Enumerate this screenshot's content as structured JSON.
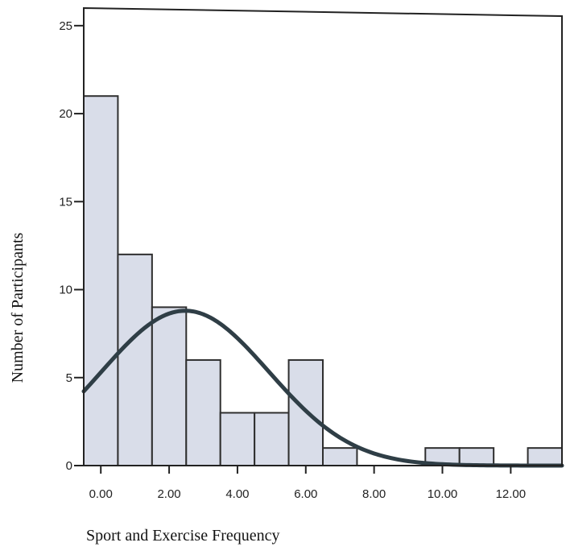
{
  "chart_data": {
    "type": "bar",
    "title": "",
    "xlabel": "Sport and Exercise Frequency",
    "ylabel": "Number of Participants",
    "bins": [
      {
        "x0": -0.5,
        "x1": 0.5,
        "value": 21
      },
      {
        "x0": 0.5,
        "x1": 1.5,
        "value": 12
      },
      {
        "x0": 1.5,
        "x1": 2.5,
        "value": 9
      },
      {
        "x0": 2.5,
        "x1": 3.5,
        "value": 6
      },
      {
        "x0": 3.5,
        "x1": 4.5,
        "value": 3
      },
      {
        "x0": 4.5,
        "x1": 5.5,
        "value": 3
      },
      {
        "x0": 5.5,
        "x1": 6.5,
        "value": 6
      },
      {
        "x0": 6.5,
        "x1": 7.5,
        "value": 1
      },
      {
        "x0": 9.5,
        "x1": 10.5,
        "value": 1
      },
      {
        "x0": 10.5,
        "x1": 11.5,
        "value": 1
      },
      {
        "x0": 12.5,
        "x1": 13.5,
        "value": 1
      }
    ],
    "x_ticks": [
      0,
      2,
      4,
      6,
      8,
      10,
      12
    ],
    "x_tick_labels": [
      "0.00",
      "2.00",
      "4.00",
      "6.00",
      "8.00",
      "10.00",
      "12.00"
    ],
    "y_ticks": [
      0,
      5,
      10,
      15,
      20,
      25
    ],
    "y_tick_labels": [
      "0",
      "5",
      "10",
      "15",
      "20",
      "25"
    ],
    "xlim": [
      -0.5,
      13.5
    ],
    "ylim": [
      0,
      26
    ],
    "grid": false,
    "legend": "none",
    "normal_curve": {
      "mean": 2.47,
      "peak": 8.8
    },
    "colors": {
      "bar_fill": "#d9dde9",
      "bar_stroke": "#2f2f2f",
      "curve": "#2f3e46",
      "axis": "#222222"
    }
  }
}
